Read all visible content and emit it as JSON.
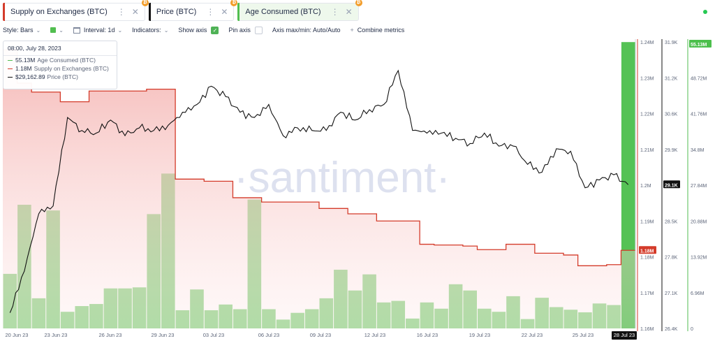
{
  "tabs": [
    {
      "label": "Supply on Exchanges (BTC)",
      "color": "#d43b2a",
      "icon": "bitcoin-icon"
    },
    {
      "label": "Price (BTC)",
      "color": "#111111",
      "icon": "bitcoin-icon"
    },
    {
      "label": "Age Consumed (BTC)",
      "color": "#52be50",
      "icon": "bitcoin-icon"
    }
  ],
  "settings": {
    "style_label": "Style: Bars",
    "interval_label": "Interval: 1d",
    "indicators_label": "Indicators:",
    "show_axis_label": "Show axis",
    "pin_axis_label": "Pin axis",
    "axis_maxmin_label": "Axis max/min: Auto/Auto",
    "combine_label": "Combine metrics"
  },
  "tooltip": {
    "time": "08:00, July 28, 2023",
    "rows": [
      {
        "value": "55.13M",
        "name": "Age Consumed (BTC)",
        "color": "#52be50"
      },
      {
        "value": "1.18M",
        "name": "Supply on Exchanges (BTC)",
        "color": "#d43b2a"
      },
      {
        "value": "$29,162.89",
        "name": "Price (BTC)",
        "color": "#111111"
      }
    ]
  },
  "watermark": "·santiment·",
  "chart_data": {
    "type": "bar",
    "x_ticks": [
      "20 Jun 23",
      "23 Jun 23",
      "26 Jun 23",
      "29 Jun 23",
      "03 Jul 23",
      "06 Jul 23",
      "09 Jul 23",
      "12 Jul 23",
      "16 Jul 23",
      "19 Jul 23",
      "22 Jul 23",
      "25 Jul 23"
    ],
    "x_highlight": "28 Jul 23",
    "supply_axis": {
      "ticks": [
        "1.24M",
        "1.23M",
        "1.22M",
        "1.21M",
        "1.2M",
        "1.19M",
        "1.18M",
        "1.17M",
        "1.16M"
      ],
      "min": 1.16,
      "max": 1.24,
      "current": "1.18M"
    },
    "price_axis": {
      "ticks": [
        "31.9K",
        "31.2K",
        "30.6K",
        "29.9K",
        "29.2K",
        "28.5K",
        "27.8K",
        "27.1K",
        "26.4K"
      ],
      "min": 26400,
      "max": 31900,
      "current": "29.1K"
    },
    "age_axis": {
      "ticks": [
        "55.13M",
        "48.72M",
        "41.76M",
        "34.8M",
        "27.84M",
        "20.88M",
        "13.92M",
        "6.96M",
        "0"
      ],
      "min": 0,
      "max": 55.13,
      "current": "55.13M"
    },
    "series": [
      {
        "name": "Age Consumed (BTC)",
        "type": "bar",
        "color": "#52be50",
        "unit": "M",
        "values": [
          10.5,
          23.8,
          5.8,
          22.7,
          3.2,
          4.3,
          4.7,
          7.7,
          7.7,
          7.9,
          22.0,
          29.8,
          3.5,
          7.5,
          3.5,
          4.6,
          3.7,
          24.8,
          3.7,
          1.7,
          3.0,
          3.7,
          5.8,
          11.3,
          7.3,
          10.4,
          5.0,
          5.3,
          1.9,
          5.0,
          3.8,
          8.5,
          7.3,
          3.8,
          3.2,
          6.2,
          1.8,
          5.9,
          4.1,
          3.6,
          3.1,
          4.8,
          4.5,
          55.1
        ]
      },
      {
        "name": "Supply on Exchanges (BTC)",
        "type": "step-area",
        "color": "#d43b2a",
        "unit": "M",
        "values": [
          1.2378,
          1.2285,
          1.226,
          1.226,
          1.2233,
          1.2233,
          1.2263,
          1.2263,
          1.2263,
          1.2263,
          1.2268,
          1.2268,
          1.2017,
          1.2017,
          1.2011,
          1.2011,
          1.1965,
          1.1965,
          1.1953,
          1.1953,
          1.1953,
          1.1953,
          1.1935,
          1.1935,
          1.192,
          1.192,
          1.19,
          1.19,
          1.19,
          1.1835,
          1.1833,
          1.1833,
          1.183,
          1.182,
          1.182,
          1.1835,
          1.1835,
          1.181,
          1.181,
          1.1805,
          1.1775,
          1.1775,
          1.1778,
          1.1818
        ]
      },
      {
        "name": "Price (BTC)",
        "type": "line",
        "color": "#111111",
        "unit": "USD",
        "values": [
          26700,
          27500,
          28600,
          28750,
          30450,
          30200,
          30150,
          30400,
          30100,
          30250,
          30200,
          30300,
          30550,
          30700,
          31050,
          30850,
          30550,
          30450,
          30700,
          30100,
          30250,
          30200,
          30200,
          30550,
          30400,
          30600,
          30700,
          31350,
          30200,
          30150,
          30150,
          30050,
          29950,
          30150,
          29900,
          29900,
          29550,
          29400,
          29850,
          29800,
          29100,
          29250,
          29350,
          29160
        ]
      }
    ]
  }
}
